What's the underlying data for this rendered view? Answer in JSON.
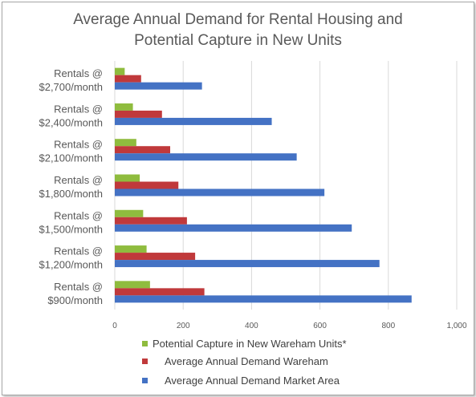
{
  "chart_data": {
    "type": "bar",
    "orientation": "horizontal",
    "title_lines": [
      "Average Annual Demand for Rental Housing and",
      "Potential Capture in New Units"
    ],
    "categories": [
      [
        "Rentals @",
        "$2,700/month"
      ],
      [
        "Rentals @",
        "$2,400/month"
      ],
      [
        "Rentals @",
        "$2,100/month"
      ],
      [
        "Rentals @",
        "$1,800/month"
      ],
      [
        "Rentals @",
        "$1,500/month"
      ],
      [
        "Rentals @",
        "$1,200/month"
      ],
      [
        "Rentals @",
        "$900/month"
      ]
    ],
    "series": [
      {
        "name": "Potential Capture in New Wareham Units*",
        "color": "#8fbc3e",
        "values": [
          29,
          53,
          63,
          73,
          83,
          93,
          103
        ]
      },
      {
        "name": "Average Annual Demand Wareham",
        "color": "#c0393b",
        "values": [
          77,
          138,
          162,
          186,
          211,
          235,
          262
        ]
      },
      {
        "name": "Average Annual Demand Market Area",
        "color": "#4472c4",
        "values": [
          255,
          459,
          532,
          613,
          693,
          774,
          868
        ]
      }
    ],
    "xlim": [
      0,
      1000
    ],
    "ticks": [
      0,
      200,
      400,
      600,
      800,
      1000
    ],
    "tick_labels": [
      "0",
      "200",
      "400",
      "600",
      "800",
      "1,000"
    ],
    "grid": true,
    "legend_position": "bottom"
  }
}
